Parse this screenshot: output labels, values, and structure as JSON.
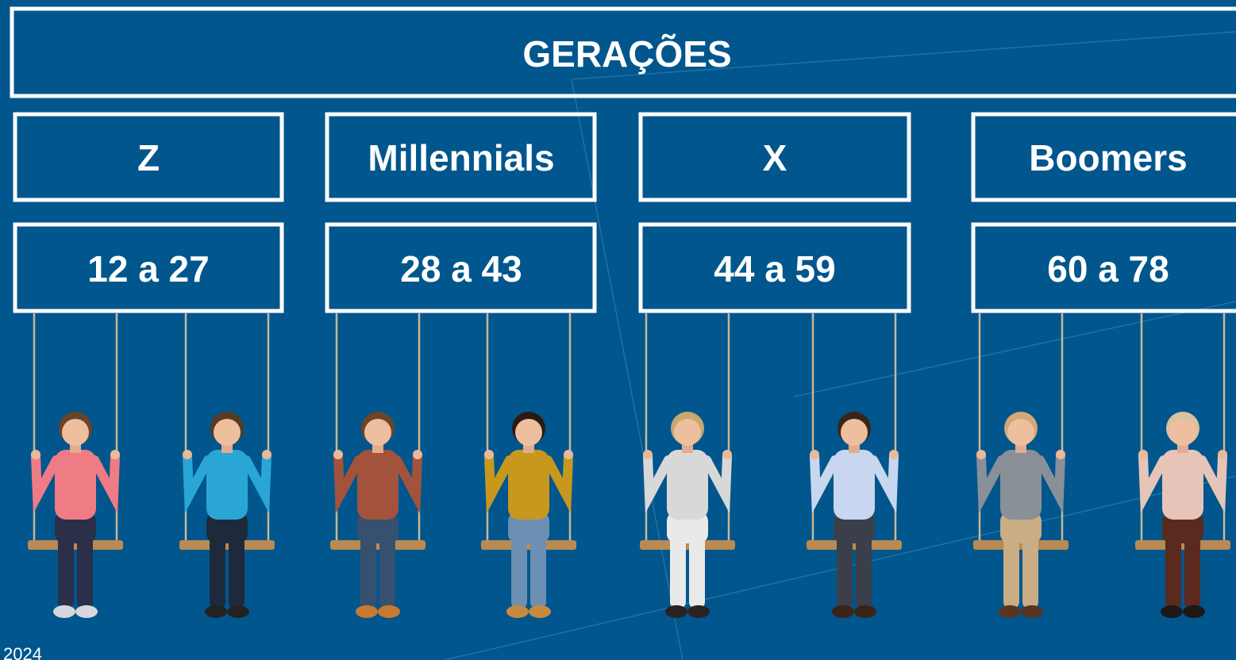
{
  "title": "GERAÇÕES",
  "generations": [
    {
      "name": "Z",
      "ages": "12 a 27"
    },
    {
      "name": "Millennials",
      "ages": "28 a 43"
    },
    {
      "name": "X",
      "ages": "44 a 59"
    },
    {
      "name": "Boomers",
      "ages": "60 a 78"
    }
  ],
  "footer": "2024"
}
